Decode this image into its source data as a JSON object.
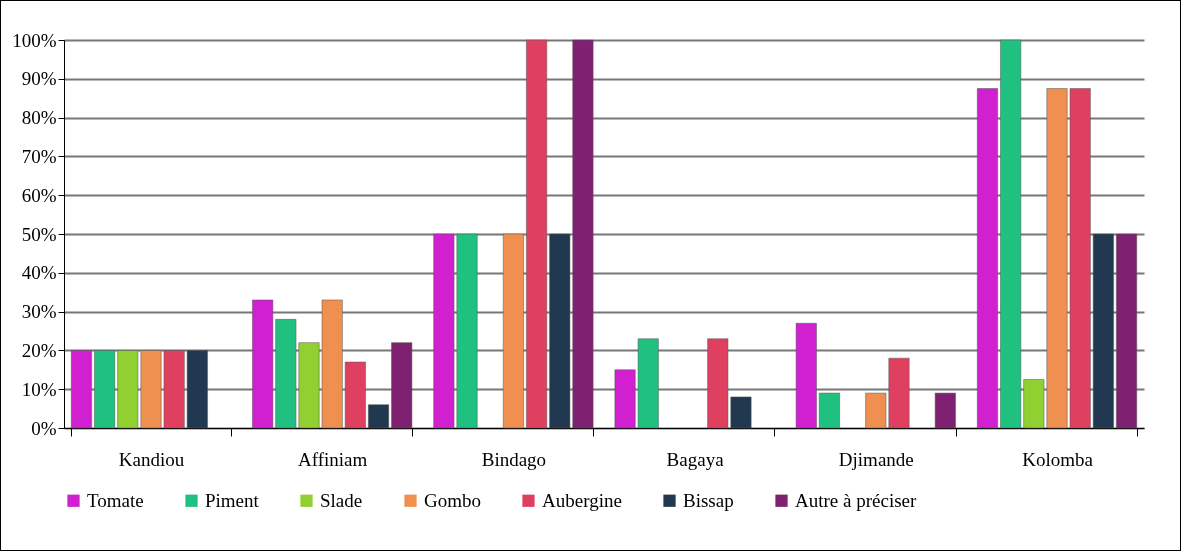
{
  "chart_data": {
    "type": "bar",
    "categories": [
      "Kandiou",
      "Affiniam",
      "Bindago",
      "Bagaya",
      "Djimande",
      "Kolomba"
    ],
    "series": [
      {
        "name": "Tomate",
        "color": "#d020d0",
        "values": [
          20,
          33,
          50,
          15,
          27,
          87.5
        ]
      },
      {
        "name": "Piment",
        "color": "#20c080",
        "values": [
          20,
          28,
          50,
          23,
          9,
          100
        ]
      },
      {
        "name": "Slade",
        "color": "#90d030",
        "values": [
          20,
          22,
          null,
          null,
          null,
          12.5
        ]
      },
      {
        "name": "Gombo",
        "color": "#f09050",
        "values": [
          20,
          33,
          50,
          null,
          9,
          87.5
        ]
      },
      {
        "name": "Aubergine",
        "color": "#e04060",
        "values": [
          20,
          17,
          100,
          23,
          18,
          87.5
        ]
      },
      {
        "name": "Bissap",
        "color": "#203850",
        "values": [
          20,
          6,
          50,
          8,
          null,
          50
        ]
      },
      {
        "name": "Autre à préciser",
        "color": "#802070",
        "values": [
          null,
          22,
          100,
          null,
          9,
          50
        ]
      }
    ],
    "ylim": [
      0,
      100
    ],
    "yticks": [
      {
        "value": 0,
        "label": "0%"
      },
      {
        "value": 10,
        "label": "10%"
      },
      {
        "value": 20,
        "label": "20%"
      },
      {
        "value": 30,
        "label": "30%"
      },
      {
        "value": 40,
        "label": "40%"
      },
      {
        "value": 50,
        "label": "50%"
      },
      {
        "value": 60,
        "label": "60%"
      },
      {
        "value": 70,
        "label": "70%"
      },
      {
        "value": 80,
        "label": "80%"
      },
      {
        "value": 90,
        "label": "90%"
      },
      {
        "value": 100,
        "label": "100%"
      }
    ],
    "grid": "y",
    "legend": "bottom"
  }
}
